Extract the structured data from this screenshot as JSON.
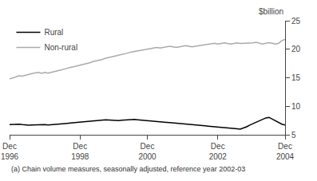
{
  "chart_data": {
    "type": "line",
    "ylabel": "$billion",
    "annotations": [
      "(a) Chain volume measures, seasonally adjusted, reference year 2002-03"
    ],
    "categories": [
      "Dec\n1996",
      null,
      null,
      null,
      null,
      null,
      null,
      null,
      null,
      null,
      null,
      null,
      null,
      null,
      null,
      null,
      null,
      null,
      null,
      null,
      null,
      null,
      "Dec\n1998",
      null,
      null,
      null,
      null,
      null,
      null,
      null,
      null,
      null,
      null,
      null,
      null,
      null,
      null,
      null,
      null,
      null,
      null,
      null,
      null,
      "Dec\n2000",
      null,
      null,
      null,
      null,
      null,
      null,
      null,
      null,
      null,
      null,
      null,
      null,
      null,
      null,
      null,
      null,
      null,
      null,
      null,
      null,
      null,
      "Dec\n2002",
      null,
      null,
      null,
      null,
      null,
      null,
      null,
      null,
      null,
      null,
      null,
      null,
      null,
      null,
      null,
      null,
      null,
      null,
      null,
      null,
      "Dec\n2004"
    ],
    "series": [
      {
        "name": "Rural",
        "color": "#000000",
        "values": [
          6.8,
          6.85,
          6.9,
          6.85,
          6.78,
          6.72,
          6.68,
          6.72,
          6.75,
          6.8,
          6.82,
          6.78,
          6.72,
          6.75,
          6.8,
          6.85,
          6.9,
          6.95,
          7.0,
          7.05,
          7.1,
          7.15,
          7.2,
          7.28,
          7.35,
          7.4,
          7.45,
          7.5,
          7.55,
          7.6,
          7.62,
          7.58,
          7.52,
          7.48,
          7.5,
          7.55,
          7.6,
          7.65,
          7.7,
          7.68,
          7.62,
          7.58,
          7.52,
          7.48,
          7.42,
          7.38,
          7.32,
          7.28,
          7.22,
          7.18,
          7.12,
          7.08,
          7.02,
          6.98,
          6.92,
          6.88,
          6.82,
          6.78,
          6.72,
          6.68,
          6.62,
          6.58,
          6.52,
          6.48,
          6.42,
          6.38,
          6.32,
          6.28,
          6.22,
          6.18,
          6.1,
          6.05,
          5.98,
          6.15,
          6.4,
          6.7,
          6.95,
          7.2,
          7.5,
          7.8,
          7.95,
          8.05,
          7.75,
          7.45,
          7.1,
          6.85,
          6.7
        ]
      },
      {
        "name": "Non-rural",
        "color": "#aaaaaa",
        "values": [
          14.8,
          15.0,
          15.15,
          15.35,
          15.28,
          15.45,
          15.55,
          15.72,
          15.85,
          15.95,
          15.78,
          15.95,
          15.82,
          15.92,
          16.05,
          16.22,
          16.35,
          16.52,
          16.65,
          16.82,
          16.92,
          17.05,
          17.22,
          17.38,
          17.52,
          17.62,
          17.82,
          17.95,
          18.05,
          18.22,
          18.42,
          18.52,
          18.65,
          18.82,
          18.95,
          19.05,
          19.22,
          19.35,
          19.52,
          19.62,
          19.72,
          19.82,
          19.92,
          20.02,
          20.12,
          20.22,
          20.32,
          20.22,
          20.32,
          20.42,
          20.52,
          20.42,
          20.32,
          20.42,
          20.52,
          20.62,
          20.52,
          20.42,
          20.52,
          20.62,
          20.72,
          20.82,
          20.92,
          21.02,
          21.05,
          20.92,
          21.02,
          21.12,
          21.02,
          20.92,
          21.02,
          21.12,
          21.02,
          21.02,
          21.12,
          21.02,
          21.12,
          21.22,
          21.05,
          20.92,
          21.05,
          21.15,
          21.05,
          20.92,
          21.05,
          21.52,
          21.72
        ]
      }
    ],
    "ylim": [
      5,
      25
    ],
    "yticks": [
      5,
      10,
      15,
      20,
      25
    ],
    "grid": false,
    "legend": "upper left"
  }
}
